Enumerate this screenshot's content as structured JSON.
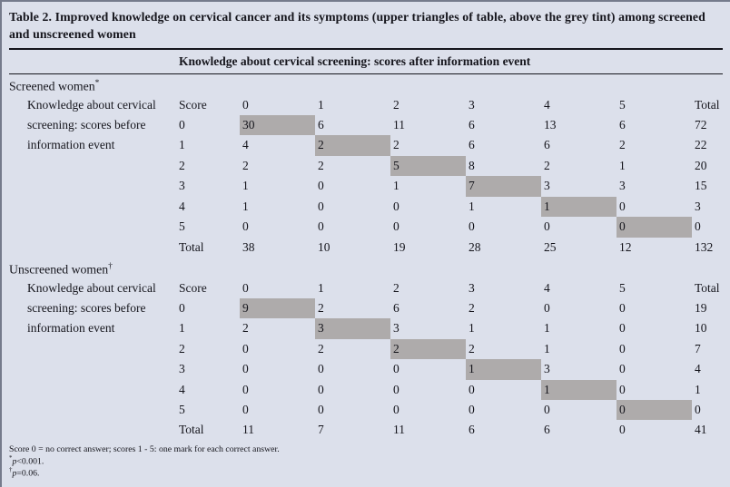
{
  "colors": {
    "background": "#dce0eb",
    "highlight": "#aeabab",
    "ink": "#15151c"
  },
  "header": {
    "title": "Table 2. Improved knowledge on cervical cancer and its symptoms (upper triangles of table, above the grey tint) among screened and unscreened women",
    "span_header": "Knowledge about cervical screening: scores after information event"
  },
  "table": {
    "row_label": "Knowledge about cervical screening: scores before information event",
    "score_header": "Score",
    "total_label": "Total",
    "score_columns": [
      "0",
      "1",
      "2",
      "3",
      "4",
      "5"
    ],
    "sections": [
      {
        "name": "Screened women",
        "marker": "*",
        "rows": [
          {
            "score": "0",
            "values": [
              30,
              6,
              11,
              6,
              13,
              6
            ],
            "total": 72
          },
          {
            "score": "1",
            "values": [
              4,
              2,
              2,
              6,
              6,
              2
            ],
            "total": 22
          },
          {
            "score": "2",
            "values": [
              2,
              2,
              5,
              8,
              2,
              1
            ],
            "total": 20
          },
          {
            "score": "3",
            "values": [
              1,
              0,
              1,
              7,
              3,
              3
            ],
            "total": 15
          },
          {
            "score": "4",
            "values": [
              1,
              0,
              0,
              1,
              1,
              0
            ],
            "total": 3
          },
          {
            "score": "5",
            "values": [
              0,
              0,
              0,
              0,
              0,
              0
            ],
            "total": 0
          }
        ],
        "totals": [
          38,
          10,
          19,
          28,
          25,
          12
        ],
        "grand_total": 132
      },
      {
        "name": "Unscreened women",
        "marker": "†",
        "rows": [
          {
            "score": "0",
            "values": [
              9,
              2,
              6,
              2,
              0,
              0
            ],
            "total": 19
          },
          {
            "score": "1",
            "values": [
              2,
              3,
              3,
              1,
              1,
              0
            ],
            "total": 10
          },
          {
            "score": "2",
            "values": [
              0,
              2,
              2,
              2,
              1,
              0
            ],
            "total": 7
          },
          {
            "score": "3",
            "values": [
              0,
              0,
              0,
              1,
              3,
              0
            ],
            "total": 4
          },
          {
            "score": "4",
            "values": [
              0,
              0,
              0,
              0,
              1,
              0
            ],
            "total": 1
          },
          {
            "score": "5",
            "values": [
              0,
              0,
              0,
              0,
              0,
              0
            ],
            "total": 0
          }
        ],
        "totals": [
          11,
          7,
          11,
          6,
          6,
          0
        ],
        "grand_total": 41
      }
    ]
  },
  "footnotes": [
    {
      "marker": "",
      "var": "",
      "text": "Score 0 = no correct answer; scores 1 - 5: one mark for each correct answer."
    },
    {
      "marker": "*",
      "var": "p",
      "text": "<0.001."
    },
    {
      "marker": "†",
      "var": "p",
      "text": "=0.06."
    }
  ]
}
